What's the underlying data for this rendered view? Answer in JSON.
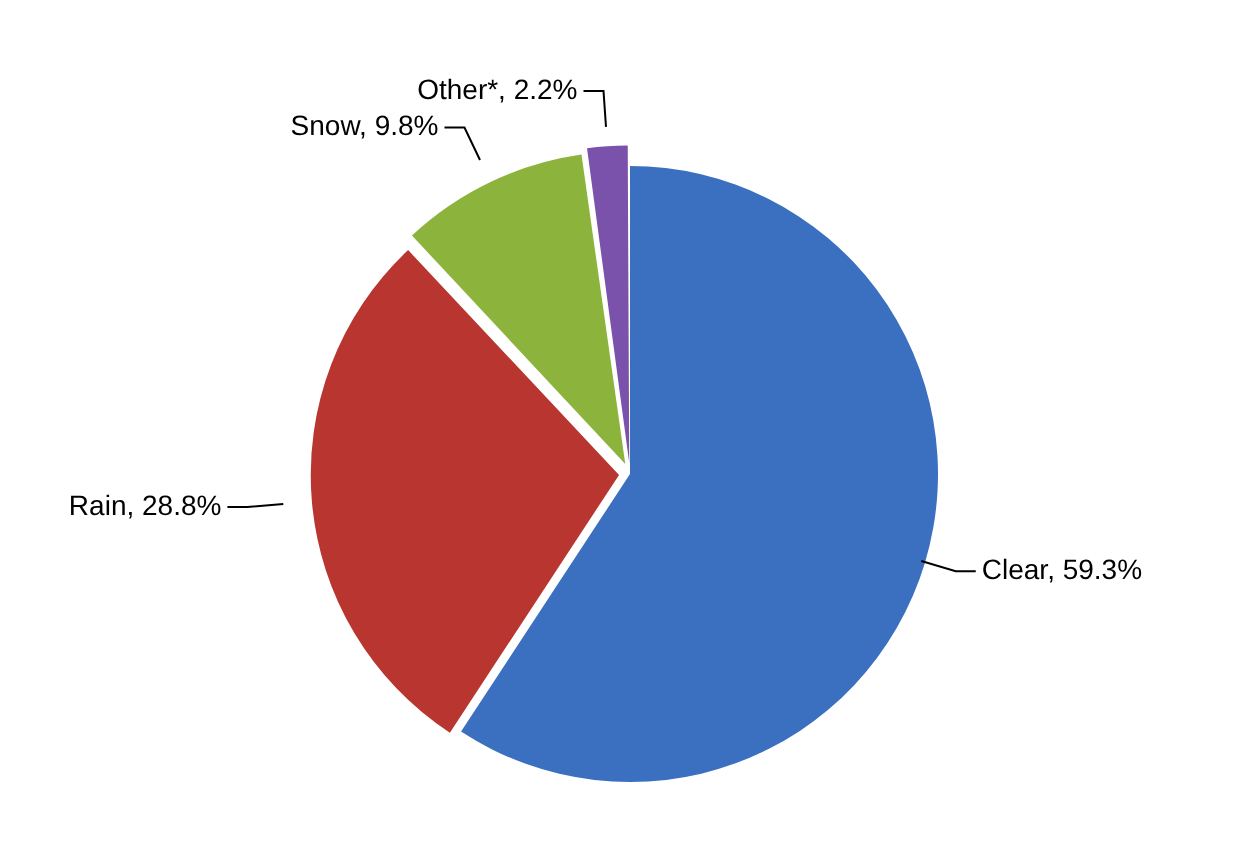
{
  "chart_data": {
    "type": "pie",
    "categories": [
      "Clear",
      "Rain",
      "Snow",
      "Other*"
    ],
    "values": [
      59.3,
      28.8,
      9.8,
      2.2
    ],
    "colors": [
      "#3b6fc0",
      "#b9352f",
      "#8cb43c",
      "#7b52ab"
    ],
    "value_labels": [
      "59.3%",
      "28.8%",
      "9.8%",
      "2.2%"
    ],
    "legend": false
  }
}
